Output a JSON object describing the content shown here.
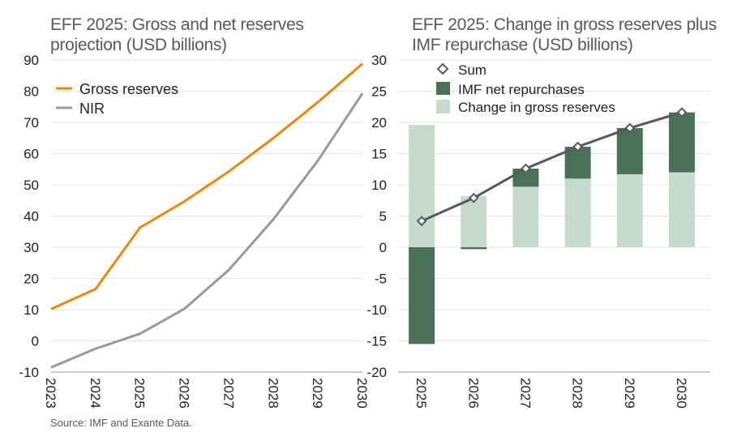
{
  "source": "Source: IMF and Exante Data.",
  "colors": {
    "gross": "#e8890c",
    "nir": "#999999",
    "imf": "#4a7157",
    "change": "#c5dccd",
    "sum": "#555a60",
    "grid": "#e3e3e3"
  },
  "chart_data": [
    {
      "type": "line",
      "title": "EFF 2025: Gross and net reserves projection (USD billions)",
      "x": [
        "2023",
        "2024",
        "2025",
        "2026",
        "2027",
        "2028",
        "2029",
        "2030"
      ],
      "ylim": [
        -10,
        90
      ],
      "yticks": [
        90,
        80,
        70,
        60,
        50,
        40,
        30,
        20,
        10,
        0,
        -10
      ],
      "legend": "top-left",
      "series": [
        {
          "name": "Gross reserves",
          "values": [
            10.2,
            16.6,
            36.3,
            44.7,
            54.3,
            65.0,
            76.5,
            88.8
          ]
        },
        {
          "name": "NIR",
          "values": [
            -8.5,
            -2.5,
            2.3,
            10.3,
            22.8,
            39.0,
            57.8,
            79.3
          ]
        }
      ]
    },
    {
      "type": "bar",
      "title": "EFF 2025: Change in gross reserves plus IMF repurchase (USD billions)",
      "categories": [
        "2025",
        "2026",
        "2027",
        "2028",
        "2029",
        "2030"
      ],
      "ylim": [
        -20,
        30
      ],
      "yticks": [
        30,
        25,
        20,
        15,
        10,
        5,
        0,
        -5,
        -10,
        -15,
        -20
      ],
      "legend": "top-left",
      "stacked": true,
      "series": [
        {
          "name": "Sum",
          "kind": "line",
          "values": [
            4.2,
            7.9,
            12.6,
            16.1,
            19.1,
            21.6
          ]
        },
        {
          "name": "IMF net repurchases",
          "values": [
            -15.5,
            -0.3,
            2.9,
            5.1,
            7.4,
            9.6
          ]
        },
        {
          "name": "Change in gross reserves",
          "values": [
            19.6,
            8.2,
            9.7,
            11.0,
            11.7,
            12.0
          ]
        }
      ]
    }
  ]
}
